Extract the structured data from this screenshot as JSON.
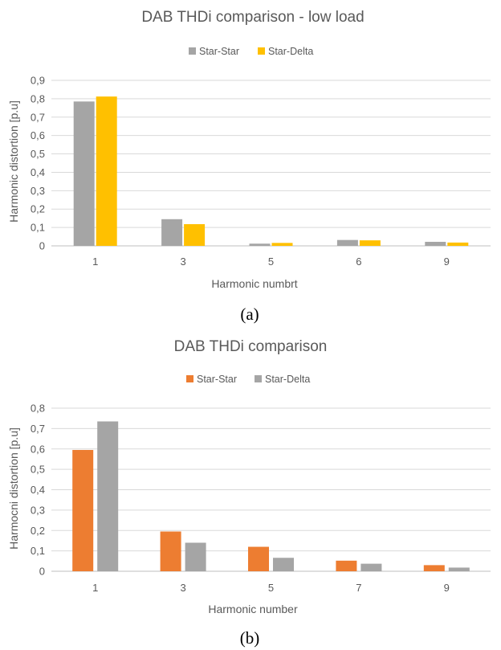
{
  "figure": {
    "captions": [
      "(a)",
      "(b)"
    ]
  },
  "chart_data": [
    {
      "type": "bar",
      "title": "DAB THDi comparison - low load",
      "xlabel": "Harmonic numbrt",
      "ylabel": "Harmonic distortion [p.u]",
      "categories": [
        "1",
        "3",
        "5",
        "6",
        "9"
      ],
      "ylim": [
        0,
        0.9
      ],
      "yticks": [
        "0",
        "0,1",
        "0,2",
        "0,3",
        "0,4",
        "0,5",
        "0,6",
        "0,7",
        "0,8",
        "0,9"
      ],
      "grid": true,
      "legend_position": "top-center",
      "series": [
        {
          "name": "Star-Star",
          "color": "#a5a5a5",
          "values": [
            0.785,
            0.145,
            0.012,
            0.032,
            0.022
          ]
        },
        {
          "name": "Star-Delta",
          "color": "#ffc000",
          "values": [
            0.812,
            0.118,
            0.016,
            0.03,
            0.018
          ]
        }
      ]
    },
    {
      "type": "bar",
      "title": "DAB THDi comparison",
      "xlabel": "Harmonic number",
      "ylabel": "Harmocni distortion [p.u]",
      "categories": [
        "1",
        "3",
        "5",
        "7",
        "9"
      ],
      "ylim": [
        0,
        0.8
      ],
      "yticks": [
        "0",
        "0,1",
        "0,2",
        "0,3",
        "0,4",
        "0,5",
        "0,6",
        "0,7",
        "0,8"
      ],
      "grid": true,
      "legend_position": "top-center",
      "series": [
        {
          "name": "Star-Star",
          "color": "#ed7d31",
          "values": [
            0.595,
            0.195,
            0.12,
            0.052,
            0.03
          ]
        },
        {
          "name": "Star-Delta",
          "color": "#a5a5a5",
          "values": [
            0.735,
            0.14,
            0.066,
            0.037,
            0.018
          ]
        }
      ]
    }
  ]
}
